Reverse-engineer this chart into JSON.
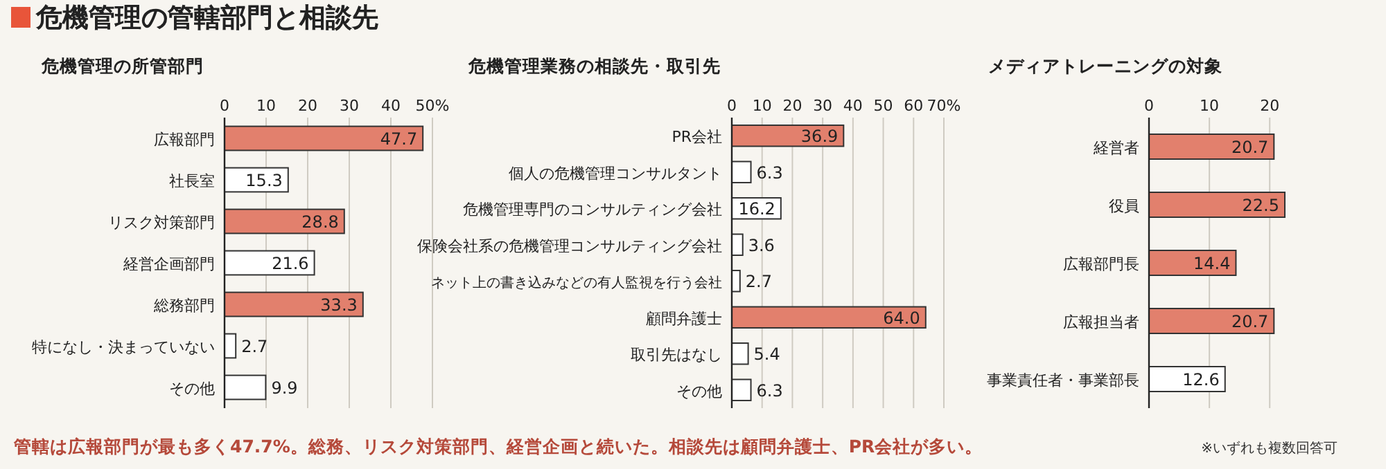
{
  "chart_data": [
    {
      "type": "other",
      "title": "危機管理の管轄部門と相談先",
      "annotations": [
        "管轄は広報部門が最も多く47.7%。総務、リスク対策部門、経営企画と続いた。相談先は顧問弁護士、PR会社が多い。",
        "※いずれも複数回答可"
      ]
    },
    {
      "type": "bar",
      "orientation": "horizontal",
      "title": "危機管理の所管部門",
      "categories": [
        "広報部門",
        "社長室",
        "リスク対策部門",
        "経営企画部門",
        "総務部門",
        "特になし・決まっていない",
        "その他"
      ],
      "values": [
        47.7,
        15.3,
        28.8,
        21.6,
        33.3,
        2.7,
        9.9
      ],
      "colors": [
        "#e2806d",
        "#ffffff",
        "#e2806d",
        "#ffffff",
        "#e2806d",
        "#ffffff",
        "#ffffff"
      ],
      "xlim": [
        0,
        50
      ],
      "xticks": [
        0,
        10,
        20,
        30,
        40,
        {
          "value": 50,
          "label": "50%"
        }
      ],
      "grid": "x",
      "data_labels": true
    },
    {
      "type": "bar",
      "orientation": "horizontal",
      "title": "危機管理業務の相談先・取引先",
      "categories": [
        "PR会社",
        "個人の危機管理コンサルタント",
        "危機管理専門のコンサルティング会社",
        "保険会社系の危機管理コンサルティング会社",
        "ネット上の書き込みなどの有人監視を行う会社",
        "顧問弁護士",
        "取引先はなし",
        "その他"
      ],
      "values": [
        36.9,
        6.3,
        16.2,
        3.6,
        2.7,
        64.0,
        5.4,
        6.3
      ],
      "colors": [
        "#e2806d",
        "#ffffff",
        "#ffffff",
        "#ffffff",
        "#ffffff",
        "#e2806d",
        "#ffffff",
        "#ffffff"
      ],
      "value_labels": [
        "36.9",
        "6.3",
        "16.2",
        "3.6",
        "2.7",
        "64.0",
        "5.4",
        "6.3"
      ],
      "xlim": [
        0,
        70
      ],
      "xticks": [
        0,
        10,
        20,
        30,
        40,
        50,
        60,
        {
          "value": 70,
          "label": "70%"
        }
      ],
      "grid": "x"
    },
    {
      "type": "bar",
      "orientation": "horizontal",
      "title": "メディアトレーニングの対象",
      "categories": [
        "経営者",
        "役員",
        "広報部門長",
        "広報担当者",
        "事業責任者・事業部長"
      ],
      "values": [
        20.7,
        22.5,
        14.4,
        20.7,
        12.6
      ],
      "colors": [
        "#e2806d",
        "#e2806d",
        "#e2806d",
        "#e2806d",
        "#ffffff"
      ],
      "xlim": [
        0,
        22.5
      ],
      "xticks": [
        0,
        10,
        20
      ],
      "grid": "x",
      "data_labels": true
    }
  ]
}
